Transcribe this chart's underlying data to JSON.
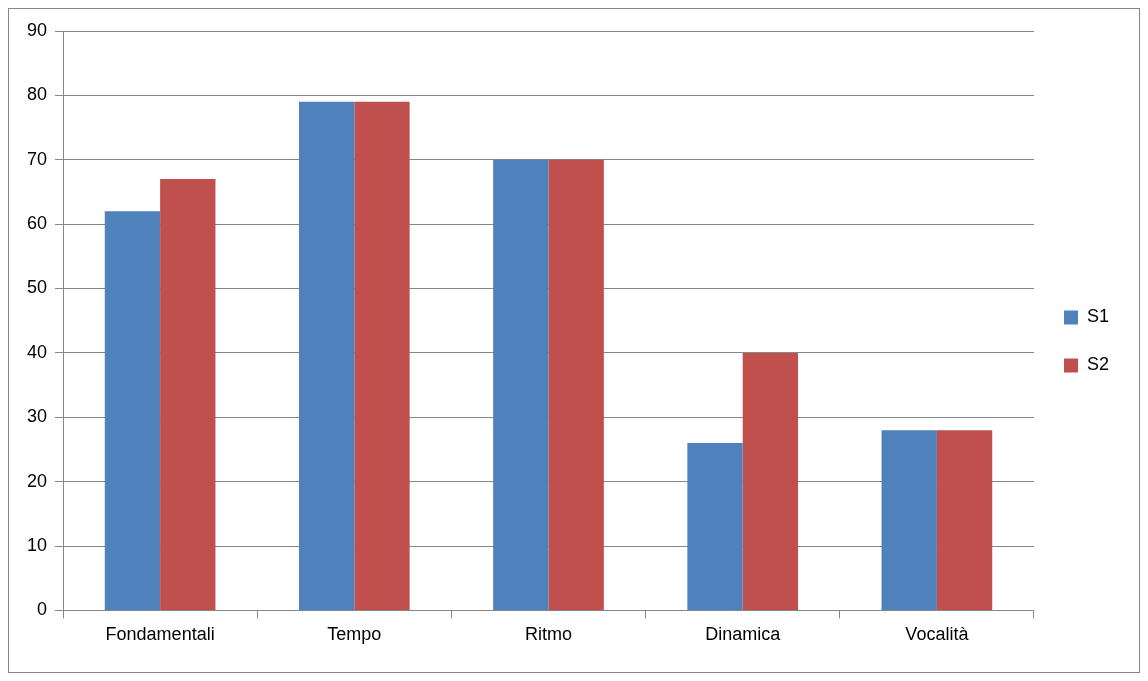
{
  "chart_data": {
    "type": "bar",
    "categories": [
      "Fondamentali",
      "Tempo",
      "Ritmo",
      "Dinamica",
      "Vocalità"
    ],
    "series": [
      {
        "name": "S1",
        "color": "#4f81bd",
        "values": [
          62,
          79,
          70,
          26,
          28
        ]
      },
      {
        "name": "S2",
        "color": "#c0504d",
        "values": [
          67,
          79,
          70,
          40,
          28
        ]
      }
    ],
    "ylim": [
      0,
      90
    ],
    "yticks": [
      0,
      10,
      20,
      30,
      40,
      50,
      60,
      70,
      80,
      90
    ],
    "grid": "y",
    "legend": "right"
  }
}
